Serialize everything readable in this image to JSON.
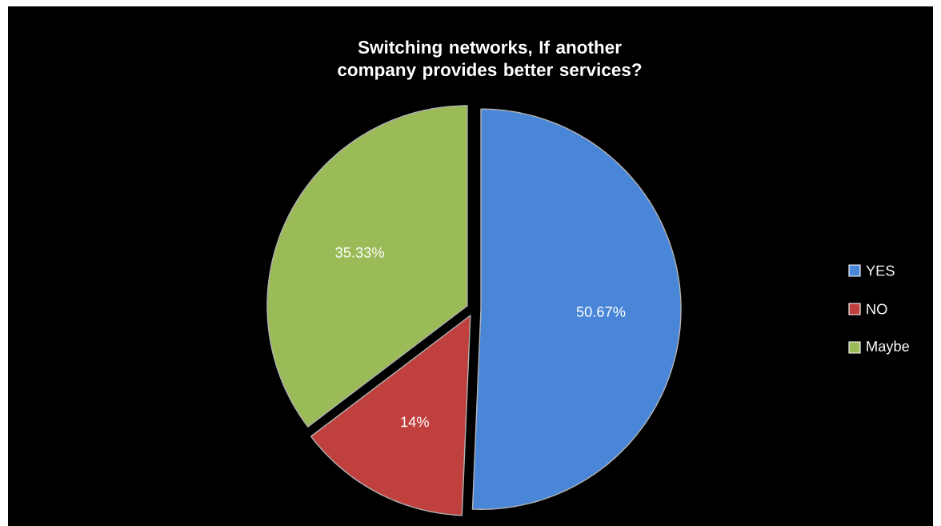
{
  "chart_data": {
    "type": "pie",
    "title": "Switching networks, If another company provides better services?",
    "categories": [
      "YES",
      "NO",
      "Maybe"
    ],
    "values": [
      50.67,
      14,
      35.33
    ],
    "colors": [
      "#4a86d8",
      "#c0403e",
      "#9bbb59"
    ],
    "value_labels": [
      "50.67%",
      "14%",
      "35.33%"
    ],
    "legend": "right"
  }
}
